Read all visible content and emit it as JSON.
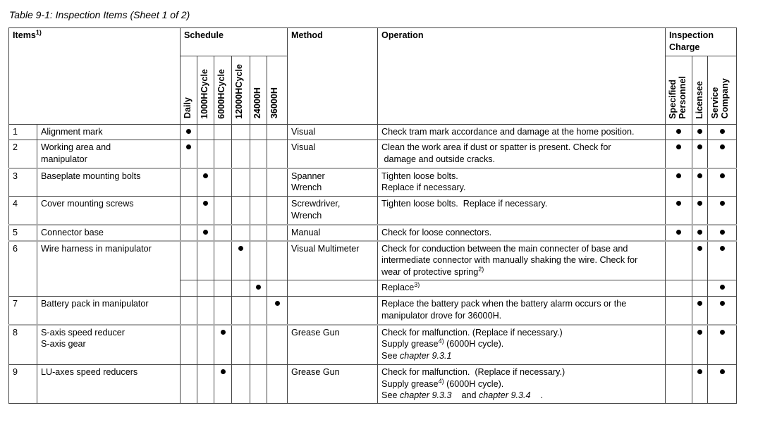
{
  "caption": "Table 9-1: Inspection Items (Sheet 1 of 2)",
  "headers": {
    "items": "Items",
    "items_sup": "1)",
    "schedule": "Schedule",
    "method": "Method",
    "operation": "Operation",
    "charge_line1": "Inspection",
    "charge_line2": "Charge",
    "schedule_cols": [
      "Daily",
      "1000HCycle",
      "6000HCycle",
      "12000HCycle",
      "24000H",
      "36000H"
    ],
    "charge_cols": [
      [
        "Specified",
        "Personnel"
      ],
      [
        "Licensee"
      ],
      [
        "Service",
        "Company"
      ]
    ]
  },
  "rows": [
    {
      "no": "1",
      "item": [
        "Alignment mark"
      ],
      "sub": [
        {
          "schedule": 0,
          "method": [
            "Visual"
          ],
          "operation": [
            [
              {
                "t": "Check tram mark accordance and damage at the home position."
              }
            ]
          ],
          "charge": [
            true,
            true,
            true
          ]
        }
      ]
    },
    {
      "no": "2",
      "item": [
        "Working area and",
        "manipulator"
      ],
      "sub": [
        {
          "schedule": 0,
          "method": [
            "Visual"
          ],
          "operation": [
            [
              {
                "t": "Clean the work area if dust or spatter is present. Check for"
              }
            ],
            [
              {
                "t": " damage and outside cracks."
              }
            ]
          ],
          "charge": [
            true,
            true,
            true
          ]
        }
      ]
    },
    {
      "no": "3",
      "item": [
        "Baseplate mounting bolts"
      ],
      "sub": [
        {
          "schedule": 1,
          "method": [
            "Spanner",
            "Wrench"
          ],
          "operation": [
            [
              {
                "t": "Tighten loose bolts."
              }
            ],
            [
              {
                "t": "Replace if necessary."
              }
            ]
          ],
          "charge": [
            true,
            true,
            true
          ]
        }
      ]
    },
    {
      "no": "4",
      "item": [
        "Cover mounting screws"
      ],
      "sub": [
        {
          "schedule": 1,
          "method": [
            "Screwdriver,",
            "Wrench"
          ],
          "operation": [
            [
              {
                "t": "Tighten loose bolts.  Replace if necessary."
              }
            ]
          ],
          "charge": [
            true,
            true,
            true
          ]
        }
      ]
    },
    {
      "no": "5",
      "item": [
        "Connector base"
      ],
      "sub": [
        {
          "schedule": 1,
          "method": [
            "Manual"
          ],
          "operation": [
            [
              {
                "t": "Check for loose connectors."
              }
            ]
          ],
          "charge": [
            true,
            true,
            true
          ]
        }
      ]
    },
    {
      "no": "6",
      "item": [
        "Wire harness in manipulator"
      ],
      "sub": [
        {
          "schedule": 3,
          "method": [
            "Visual Multimeter"
          ],
          "operation": [
            [
              {
                "t": "Check for conduction between the main connecter of base and"
              }
            ],
            [
              {
                "t": "intermediate connector with manually shaking the wire. Check for"
              }
            ],
            [
              {
                "t": "wear of protective spring"
              },
              {
                "sup": "2)"
              }
            ]
          ],
          "charge": [
            false,
            true,
            true
          ]
        },
        {
          "schedule": 4,
          "method": [],
          "operation": [
            [
              {
                "t": "Replace"
              },
              {
                "sup": "3)"
              }
            ]
          ],
          "charge": [
            false,
            false,
            true
          ]
        }
      ]
    },
    {
      "no": "7",
      "item": [
        "Battery pack in manipulator"
      ],
      "sub": [
        {
          "schedule": 5,
          "method": [],
          "operation": [
            [
              {
                "t": "Replace the battery pack when the battery alarm occurs or the"
              }
            ],
            [
              {
                "t": "manipulator drove for 36000H."
              }
            ]
          ],
          "charge": [
            false,
            true,
            true
          ]
        }
      ]
    },
    {
      "no": "8",
      "item": [
        "S-axis speed reducer",
        "S-axis gear"
      ],
      "sub": [
        {
          "schedule": 2,
          "method": [
            "Grease Gun"
          ],
          "operation": [
            [
              {
                "t": "Check for malfunction. (Replace if necessary.)"
              }
            ],
            [
              {
                "t": "Supply grease"
              },
              {
                "sup": "4)"
              },
              {
                "t": " (6000H cycle)."
              }
            ],
            [
              {
                "t": "See "
              },
              {
                "i": "chapter 9.3.1"
              }
            ]
          ],
          "charge": [
            false,
            true,
            true
          ]
        }
      ]
    },
    {
      "no": "9",
      "item": [
        "LU-axes speed reducers"
      ],
      "sub": [
        {
          "schedule": 2,
          "method": [
            "Grease Gun"
          ],
          "operation": [
            [
              {
                "t": "Check for malfunction.  (Replace if necessary.)"
              }
            ],
            [
              {
                "t": "Supply grease"
              },
              {
                "sup": "4)"
              },
              {
                "t": " (6000H cycle)."
              }
            ],
            [
              {
                "t": "See "
              },
              {
                "i": "chapter 9.3.3"
              },
              {
                "t": "    and "
              },
              {
                "i": "chapter 9.3.4"
              },
              {
                "t": "    ."
              }
            ]
          ],
          "charge": [
            false,
            true,
            true
          ]
        }
      ]
    }
  ]
}
